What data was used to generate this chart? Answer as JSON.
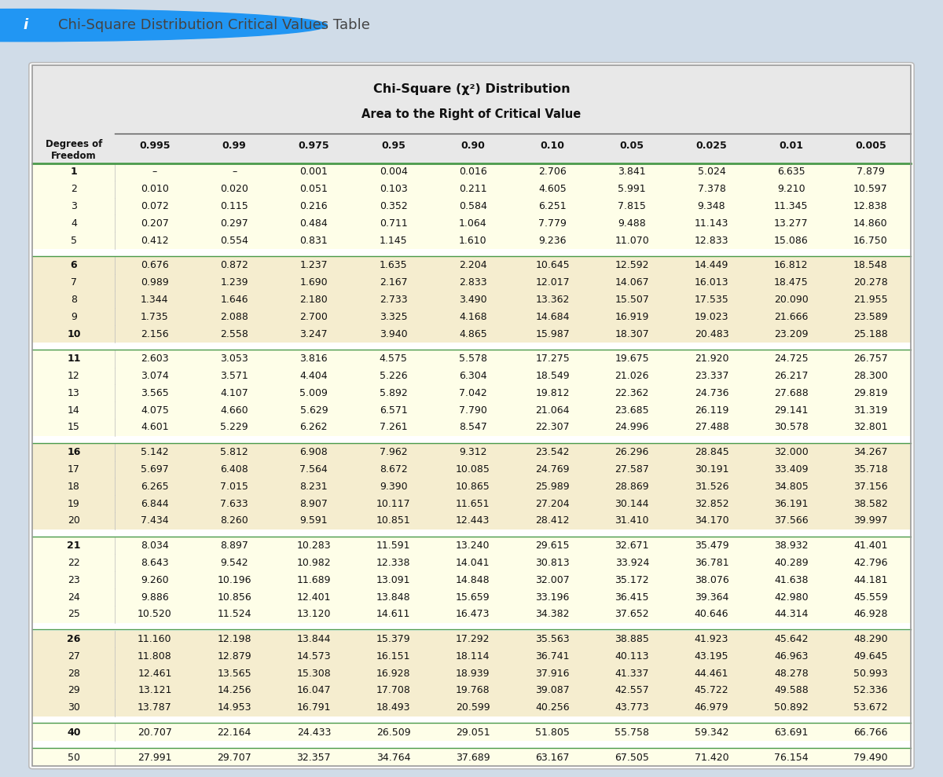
{
  "title_bar_text": "Chi-Square Distribution Critical Values Table",
  "table_title_line1": "Chi-Square (χ²) Distribution",
  "table_title_line2": "Area to the Right of Critical Value",
  "col_headers": [
    "0.995",
    "0.99",
    "0.975",
    "0.95",
    "0.90",
    "0.10",
    "0.05",
    "0.025",
    "0.01",
    "0.005"
  ],
  "rows": [
    {
      "df": "1",
      "bold": true,
      "vals": [
        "–",
        "–",
        "0.001",
        "0.004",
        "0.016",
        "2.706",
        "3.841",
        "5.024",
        "6.635",
        "7.879"
      ]
    },
    {
      "df": "2",
      "bold": false,
      "vals": [
        "0.010",
        "0.020",
        "0.051",
        "0.103",
        "0.211",
        "4.605",
        "5.991",
        "7.378",
        "9.210",
        "10.597"
      ]
    },
    {
      "df": "3",
      "bold": false,
      "vals": [
        "0.072",
        "0.115",
        "0.216",
        "0.352",
        "0.584",
        "6.251",
        "7.815",
        "9.348",
        "11.345",
        "12.838"
      ]
    },
    {
      "df": "4",
      "bold": false,
      "vals": [
        "0.207",
        "0.297",
        "0.484",
        "0.711",
        "1.064",
        "7.779",
        "9.488",
        "11.143",
        "13.277",
        "14.860"
      ]
    },
    {
      "df": "5",
      "bold": false,
      "vals": [
        "0.412",
        "0.554",
        "0.831",
        "1.145",
        "1.610",
        "9.236",
        "11.070",
        "12.833",
        "15.086",
        "16.750"
      ]
    },
    {
      "df": "6",
      "bold": true,
      "vals": [
        "0.676",
        "0.872",
        "1.237",
        "1.635",
        "2.204",
        "10.645",
        "12.592",
        "14.449",
        "16.812",
        "18.548"
      ]
    },
    {
      "df": "7",
      "bold": false,
      "vals": [
        "0.989",
        "1.239",
        "1.690",
        "2.167",
        "2.833",
        "12.017",
        "14.067",
        "16.013",
        "18.475",
        "20.278"
      ]
    },
    {
      "df": "8",
      "bold": false,
      "vals": [
        "1.344",
        "1.646",
        "2.180",
        "2.733",
        "3.490",
        "13.362",
        "15.507",
        "17.535",
        "20.090",
        "21.955"
      ]
    },
    {
      "df": "9",
      "bold": false,
      "vals": [
        "1.735",
        "2.088",
        "2.700",
        "3.325",
        "4.168",
        "14.684",
        "16.919",
        "19.023",
        "21.666",
        "23.589"
      ]
    },
    {
      "df": "10",
      "bold": true,
      "vals": [
        "2.156",
        "2.558",
        "3.247",
        "3.940",
        "4.865",
        "15.987",
        "18.307",
        "20.483",
        "23.209",
        "25.188"
      ]
    },
    {
      "df": "11",
      "bold": true,
      "vals": [
        "2.603",
        "3.053",
        "3.816",
        "4.575",
        "5.578",
        "17.275",
        "19.675",
        "21.920",
        "24.725",
        "26.757"
      ]
    },
    {
      "df": "12",
      "bold": false,
      "vals": [
        "3.074",
        "3.571",
        "4.404",
        "5.226",
        "6.304",
        "18.549",
        "21.026",
        "23.337",
        "26.217",
        "28.300"
      ]
    },
    {
      "df": "13",
      "bold": false,
      "vals": [
        "3.565",
        "4.107",
        "5.009",
        "5.892",
        "7.042",
        "19.812",
        "22.362",
        "24.736",
        "27.688",
        "29.819"
      ]
    },
    {
      "df": "14",
      "bold": false,
      "vals": [
        "4.075",
        "4.660",
        "5.629",
        "6.571",
        "7.790",
        "21.064",
        "23.685",
        "26.119",
        "29.141",
        "31.319"
      ]
    },
    {
      "df": "15",
      "bold": false,
      "vals": [
        "4.601",
        "5.229",
        "6.262",
        "7.261",
        "8.547",
        "22.307",
        "24.996",
        "27.488",
        "30.578",
        "32.801"
      ]
    },
    {
      "df": "16",
      "bold": true,
      "vals": [
        "5.142",
        "5.812",
        "6.908",
        "7.962",
        "9.312",
        "23.542",
        "26.296",
        "28.845",
        "32.000",
        "34.267"
      ]
    },
    {
      "df": "17",
      "bold": false,
      "vals": [
        "5.697",
        "6.408",
        "7.564",
        "8.672",
        "10.085",
        "24.769",
        "27.587",
        "30.191",
        "33.409",
        "35.718"
      ]
    },
    {
      "df": "18",
      "bold": false,
      "vals": [
        "6.265",
        "7.015",
        "8.231",
        "9.390",
        "10.865",
        "25.989",
        "28.869",
        "31.526",
        "34.805",
        "37.156"
      ]
    },
    {
      "df": "19",
      "bold": false,
      "vals": [
        "6.844",
        "7.633",
        "8.907",
        "10.117",
        "11.651",
        "27.204",
        "30.144",
        "32.852",
        "36.191",
        "38.582"
      ]
    },
    {
      "df": "20",
      "bold": false,
      "vals": [
        "7.434",
        "8.260",
        "9.591",
        "10.851",
        "12.443",
        "28.412",
        "31.410",
        "34.170",
        "37.566",
        "39.997"
      ]
    },
    {
      "df": "21",
      "bold": true,
      "vals": [
        "8.034",
        "8.897",
        "10.283",
        "11.591",
        "13.240",
        "29.615",
        "32.671",
        "35.479",
        "38.932",
        "41.401"
      ]
    },
    {
      "df": "22",
      "bold": false,
      "vals": [
        "8.643",
        "9.542",
        "10.982",
        "12.338",
        "14.041",
        "30.813",
        "33.924",
        "36.781",
        "40.289",
        "42.796"
      ]
    },
    {
      "df": "23",
      "bold": false,
      "vals": [
        "9.260",
        "10.196",
        "11.689",
        "13.091",
        "14.848",
        "32.007",
        "35.172",
        "38.076",
        "41.638",
        "44.181"
      ]
    },
    {
      "df": "24",
      "bold": false,
      "vals": [
        "9.886",
        "10.856",
        "12.401",
        "13.848",
        "15.659",
        "33.196",
        "36.415",
        "39.364",
        "42.980",
        "45.559"
      ]
    },
    {
      "df": "25",
      "bold": false,
      "vals": [
        "10.520",
        "11.524",
        "13.120",
        "14.611",
        "16.473",
        "34.382",
        "37.652",
        "40.646",
        "44.314",
        "46.928"
      ]
    },
    {
      "df": "26",
      "bold": true,
      "vals": [
        "11.160",
        "12.198",
        "13.844",
        "15.379",
        "17.292",
        "35.563",
        "38.885",
        "41.923",
        "45.642",
        "48.290"
      ]
    },
    {
      "df": "27",
      "bold": false,
      "vals": [
        "11.808",
        "12.879",
        "14.573",
        "16.151",
        "18.114",
        "36.741",
        "40.113",
        "43.195",
        "46.963",
        "49.645"
      ]
    },
    {
      "df": "28",
      "bold": false,
      "vals": [
        "12.461",
        "13.565",
        "15.308",
        "16.928",
        "18.939",
        "37.916",
        "41.337",
        "44.461",
        "48.278",
        "50.993"
      ]
    },
    {
      "df": "29",
      "bold": false,
      "vals": [
        "13.121",
        "14.256",
        "16.047",
        "17.708",
        "19.768",
        "39.087",
        "42.557",
        "45.722",
        "49.588",
        "52.336"
      ]
    },
    {
      "df": "30",
      "bold": false,
      "vals": [
        "13.787",
        "14.953",
        "16.791",
        "18.493",
        "20.599",
        "40.256",
        "43.773",
        "46.979",
        "50.892",
        "53.672"
      ]
    },
    {
      "df": "40",
      "bold": true,
      "vals": [
        "20.707",
        "22.164",
        "24.433",
        "26.509",
        "29.051",
        "51.805",
        "55.758",
        "59.342",
        "63.691",
        "66.766"
      ]
    },
    {
      "df": "50",
      "bold": false,
      "vals": [
        "27.991",
        "29.707",
        "32.357",
        "34.764",
        "37.689",
        "63.167",
        "67.505",
        "71.420",
        "76.154",
        "79.490"
      ]
    }
  ],
  "group_boundaries": [
    5,
    10,
    15,
    20,
    25,
    30,
    31
  ],
  "row_bg_colors": [
    "#fefee8",
    "#f5edcf"
  ],
  "header_bg": "#e8e8e8",
  "title_bar_bg": "#e4edf5",
  "outer_bg": "#d0dce8",
  "separator_color": "#4a9a4a",
  "text_color": "#111111",
  "table_border_color": "#aaaaaa",
  "vert_sep_color": "#bbbbbb"
}
